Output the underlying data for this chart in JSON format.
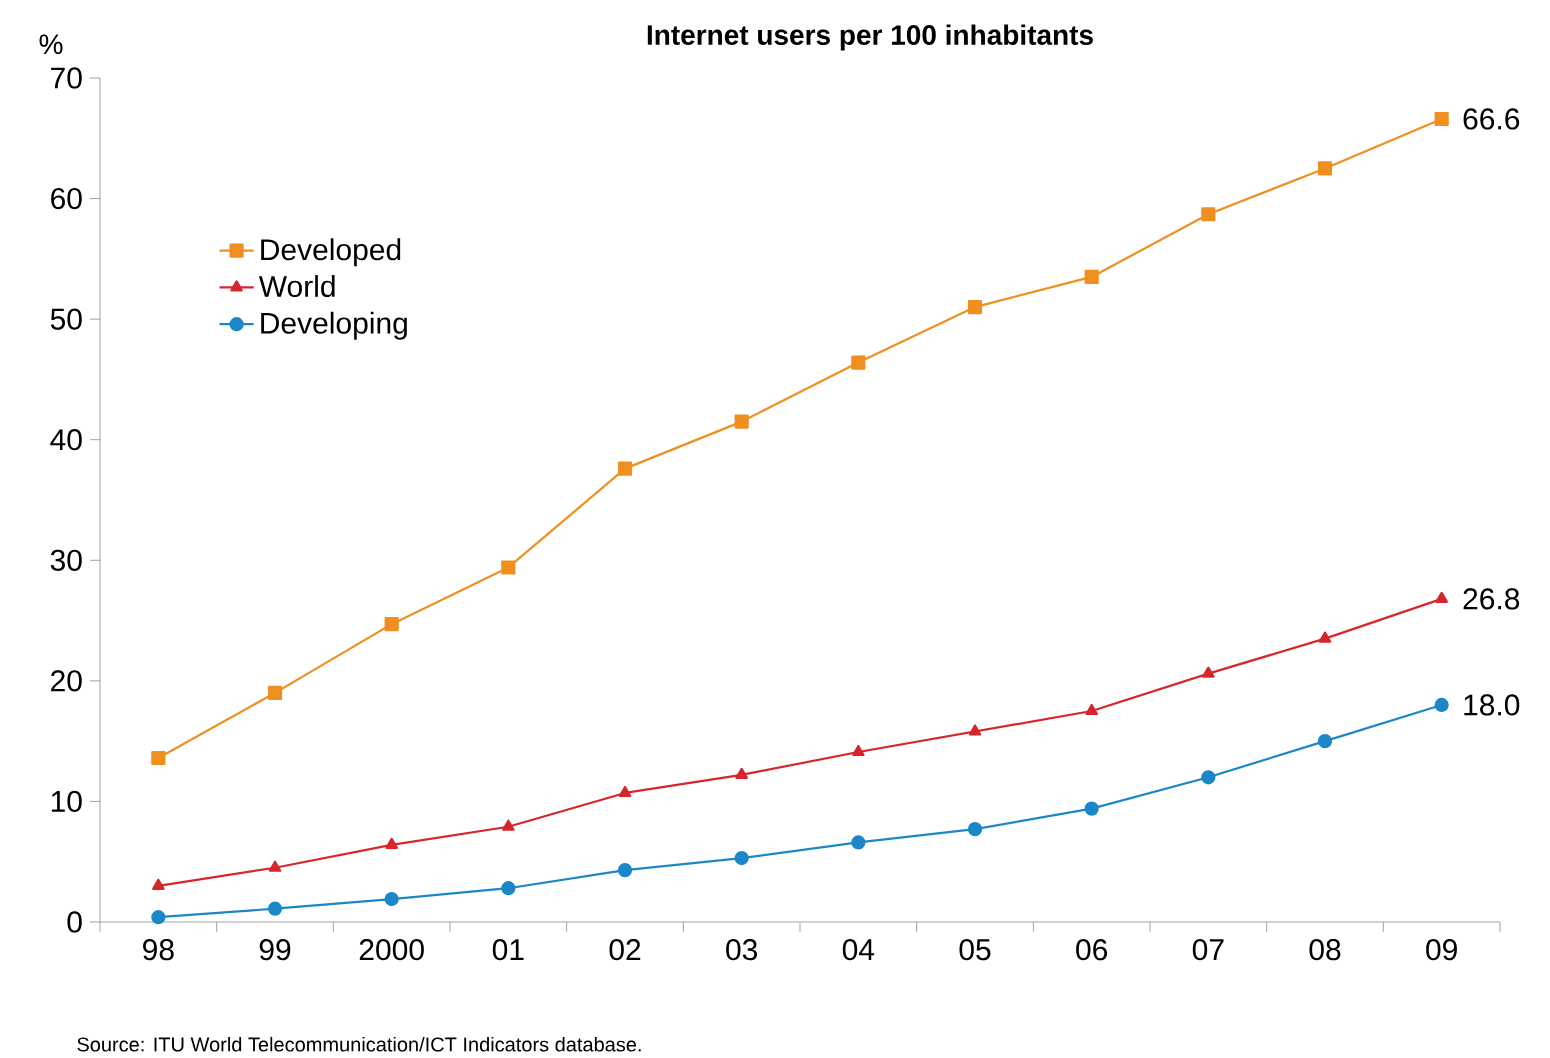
{
  "chart_data": {
    "type": "line",
    "title": "Internet users per 100 inhabitants",
    "ylabel": "%",
    "categories": [
      "98",
      "99",
      "2000",
      "01",
      "02",
      "03",
      "04",
      "05",
      "06",
      "07",
      "08",
      "09"
    ],
    "series": [
      {
        "name": "Developed",
        "color": "#ee8f1f",
        "marker": "square",
        "values": [
          13.6,
          19.0,
          24.7,
          29.4,
          37.6,
          41.5,
          46.4,
          51.0,
          53.5,
          58.7,
          62.5,
          66.6
        ],
        "value_labels": [
          null,
          null,
          null,
          null,
          null,
          null,
          null,
          null,
          null,
          null,
          null,
          "66.6"
        ]
      },
      {
        "name": "World",
        "color": "#d7262b",
        "marker": "triangle",
        "values": [
          3.0,
          4.5,
          6.4,
          7.9,
          10.7,
          12.2,
          14.1,
          15.8,
          17.5,
          20.6,
          23.5,
          26.8
        ],
        "value_labels": [
          null,
          null,
          null,
          null,
          null,
          null,
          null,
          null,
          null,
          null,
          null,
          "26.8"
        ]
      },
      {
        "name": "Developing",
        "color": "#1b87c7",
        "marker": "circle",
        "values": [
          0.4,
          1.1,
          1.9,
          2.8,
          4.3,
          5.3,
          6.6,
          7.7,
          9.4,
          12.0,
          15.0,
          18.0
        ],
        "value_labels": [
          null,
          null,
          null,
          null,
          null,
          null,
          null,
          null,
          null,
          null,
          null,
          "18.0"
        ]
      }
    ],
    "ylim": [
      0,
      70
    ],
    "yticks": [
      0,
      10,
      20,
      30,
      40,
      50,
      60,
      70
    ],
    "legend": "top left",
    "grid": false,
    "annotations": [
      "Source: ITU World Telecommunication/ICT Indicators database."
    ]
  }
}
